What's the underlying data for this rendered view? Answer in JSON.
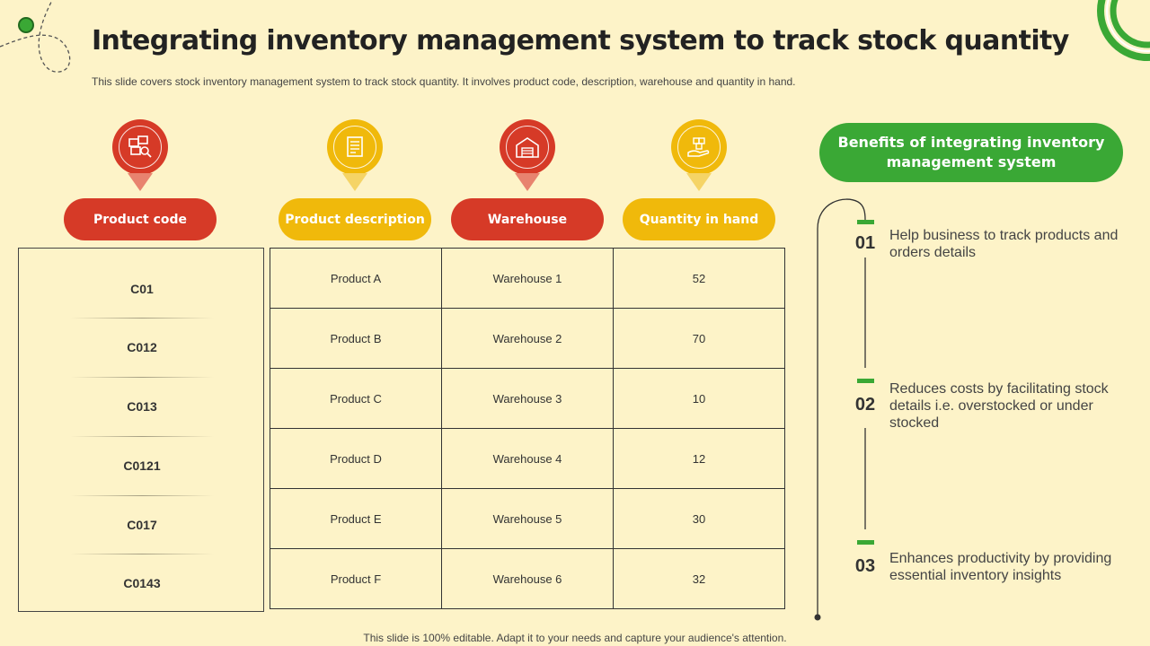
{
  "title": "Integrating inventory management system to track stock quantity",
  "subtitle": "This slide covers stock inventory management system to track stock quantity. It involves product code, description, warehouse and quantity in hand.",
  "footer": "This slide is 100% editable. Adapt it to your needs and capture your audience's attention.",
  "columns": [
    {
      "label": "Product code",
      "color": "#d63a27",
      "icon": "boxes-search-icon"
    },
    {
      "label": "Product description",
      "color": "#f0b90b",
      "icon": "document-icon"
    },
    {
      "label": "Warehouse",
      "color": "#d63a27",
      "icon": "warehouse-icon"
    },
    {
      "label": "Quantity in hand",
      "color": "#f0b90b",
      "icon": "hand-boxes-icon"
    }
  ],
  "codes": [
    "C01",
    "C012",
    "C013",
    "C0121",
    "C017",
    "C0143"
  ],
  "rows": [
    {
      "description": "Product A",
      "warehouse": "Warehouse 1",
      "quantity": "52"
    },
    {
      "description": "Product B",
      "warehouse": "Warehouse 2",
      "quantity": "70"
    },
    {
      "description": "Product C",
      "warehouse": "Warehouse 3",
      "quantity": "10"
    },
    {
      "description": "Product D",
      "warehouse": "Warehouse 4",
      "quantity": "12"
    },
    {
      "description": "Product E",
      "warehouse": "Warehouse 5",
      "quantity": "30"
    },
    {
      "description": "Product F",
      "warehouse": "Warehouse 6",
      "quantity": "32"
    }
  ],
  "benefits": {
    "header": "Benefits of integrating inventory management system",
    "items": [
      {
        "num": "01",
        "text": "Help business to track products and orders details"
      },
      {
        "num": "02",
        "text": "Reduces costs by facilitating stock details i.e. overstocked or under stocked"
      },
      {
        "num": "03",
        "text": "Enhances productivity by providing essential inventory insights"
      }
    ]
  },
  "colors": {
    "background": "#fdf3c8",
    "red": "#d63a27",
    "yellow": "#f0b90b",
    "green": "#3aa835"
  }
}
